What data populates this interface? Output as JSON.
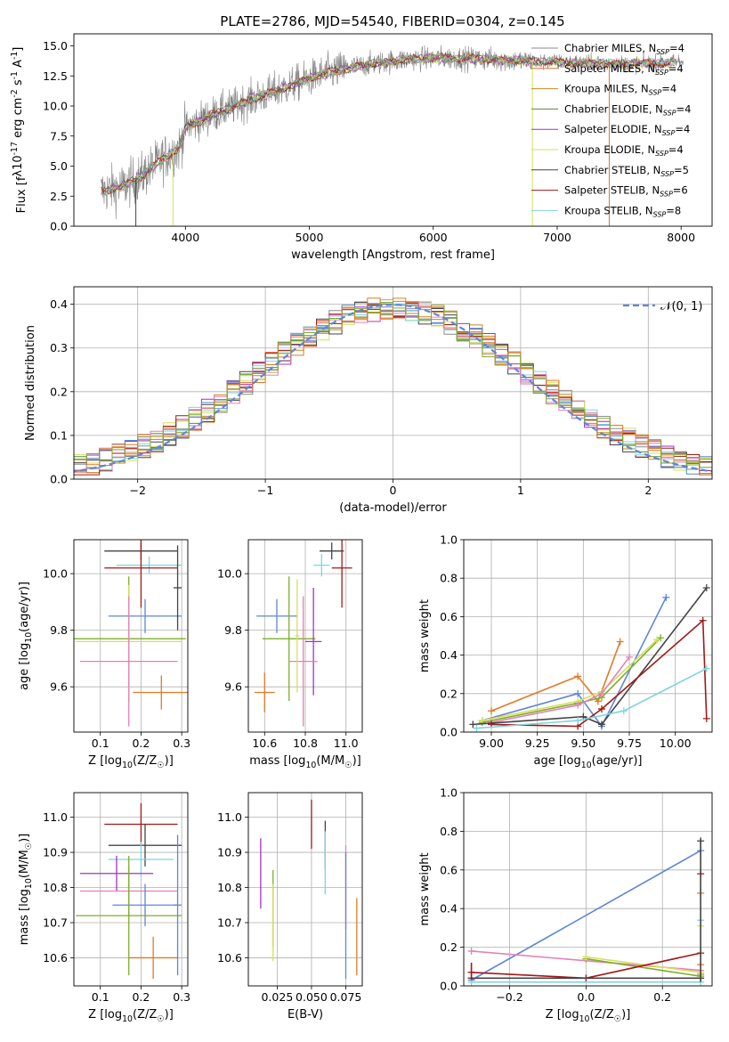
{
  "figure_title": "PLATE=2786, MJD=54540, FIBERID=0304, z=0.145",
  "models": [
    {
      "name": "Chabrier MILES",
      "nssp": "4",
      "color": "#8c8c8c"
    },
    {
      "name": "Salpeter MILES",
      "nssp": "4",
      "color": "#e36f3a"
    },
    {
      "name": "Kroupa MILES",
      "nssp": "4",
      "color": "#c88a1e"
    },
    {
      "name": "Chabrier ELODIE",
      "nssp": "4",
      "color": "#5a8a3c"
    },
    {
      "name": "Salpeter ELODIE",
      "nssp": "4",
      "color": "#a531c4"
    },
    {
      "name": "Kroupa ELODIE",
      "nssp": "4",
      "color": "#d4e05a"
    },
    {
      "name": "Chabrier STELIB",
      "nssp": "5",
      "color": "#444444"
    },
    {
      "name": "Salpeter STELIB",
      "nssp": "6",
      "color": "#a01818"
    },
    {
      "name": "Kroupa STELIB",
      "nssp": "8",
      "color": "#7fd4e0"
    }
  ],
  "extra_colors": {
    "blue": "#5f86d6",
    "pink": "#e57fb9",
    "orange": "#e07a26",
    "olive": "#7fae2a"
  },
  "chart_data": [
    {
      "id": "spectrum",
      "type": "line",
      "xlabel": "wavelength [Angstrom, rest frame]",
      "ylabel": "Flux [f_λ10^-17 erg cm^-2 s^-1 A^-1]",
      "xlim": [
        3100,
        8250
      ],
      "ylim": [
        0,
        16
      ],
      "xticks": [
        4000,
        5000,
        6000,
        7000,
        8000
      ],
      "yticks": [
        0.0,
        2.5,
        5.0,
        7.5,
        10.0,
        12.5,
        15.0
      ],
      "ytick_labels": [
        "0.0",
        "2.5",
        "5.0",
        "7.5",
        "10.0",
        "12.5",
        "15.0"
      ],
      "continuum": [
        [
          3320,
          2.9
        ],
        [
          3500,
          3.3
        ],
        [
          3650,
          4.2
        ],
        [
          3800,
          5.5
        ],
        [
          3950,
          6.5
        ],
        [
          4000,
          8.2
        ],
        [
          4200,
          9.2
        ],
        [
          4500,
          10.4
        ],
        [
          4800,
          11.5
        ],
        [
          5000,
          12.3
        ],
        [
          5200,
          12.9
        ],
        [
          5500,
          13.5
        ],
        [
          5800,
          13.9
        ],
        [
          6100,
          14.0
        ],
        [
          6400,
          13.9
        ],
        [
          6800,
          13.7
        ],
        [
          7200,
          13.6
        ],
        [
          7600,
          13.5
        ],
        [
          7900,
          13.6
        ],
        [
          8000,
          13.7
        ]
      ],
      "legend_location": "upper right",
      "grid": false
    },
    {
      "id": "residuals",
      "type": "histogram",
      "xlabel": "(data-model)/error",
      "ylabel": "Normed distribution",
      "xlim": [
        -2.5,
        2.5
      ],
      "ylim": [
        0,
        0.44
      ],
      "xticks": [
        -2,
        -1,
        0,
        1,
        2
      ],
      "xtick_labels": [
        "−2",
        "−1",
        "0",
        "1",
        "2"
      ],
      "yticks": [
        0.0,
        0.1,
        0.2,
        0.3,
        0.4
      ],
      "ytick_labels": [
        "0.0",
        "0.1",
        "0.2",
        "0.3",
        "0.4"
      ],
      "bin_width": 0.1,
      "reference_curve": {
        "label": "𝒩(0, 1)",
        "mean": 0,
        "sigma": 1,
        "color": "#5f86d6"
      },
      "legend_location": "upper right",
      "grid": true
    },
    {
      "id": "age-vs-Z",
      "type": "errorbar",
      "xlabel": "Z [log10(Z/Z☉)]",
      "ylabel": "age  [log10(age/yr)]",
      "xlim": [
        0.035,
        0.315
      ],
      "ylim": [
        9.44,
        10.12
      ],
      "xticks": [
        0.1,
        0.2,
        0.3
      ],
      "xtick_labels": [
        "0.1",
        "0.2",
        "0.3"
      ],
      "yticks": [
        9.6,
        9.8,
        10.0
      ],
      "ytick_labels": [
        "9.6",
        "9.8",
        "10.0"
      ],
      "points": [
        {
          "x": 0.2,
          "y": 10.08,
          "xerr": 0.09,
          "yerr": 0.03,
          "color": "#444444"
        },
        {
          "x": 0.22,
          "y": 10.03,
          "xerr": 0.08,
          "yerr": 0.03,
          "color": "#7fd4e0"
        },
        {
          "x": 0.2,
          "y": 10.02,
          "xerr": 0.09,
          "yerr": 0.14,
          "color": "#a01818"
        },
        {
          "x": 0.21,
          "y": 9.85,
          "xerr": 0.09,
          "yerr": 0.06,
          "color": "#5f86d6"
        },
        {
          "x": 0.17,
          "y": 9.77,
          "xerr": 0.14,
          "yerr": 0.22,
          "color": "#7fae2a"
        },
        {
          "x": 0.17,
          "y": 9.76,
          "xerr": 0.13,
          "yerr": 0.2,
          "color": "#d4e05a"
        },
        {
          "x": 0.17,
          "y": 9.69,
          "xerr": 0.12,
          "yerr": 0.23,
          "color": "#e57fb9"
        },
        {
          "x": 0.25,
          "y": 9.58,
          "xerr": 0.07,
          "yerr": 0.06,
          "color": "#e07a26"
        },
        {
          "x": 0.29,
          "y": 9.95,
          "xerr": 0.01,
          "yerr": 0.15,
          "color": "#444444"
        }
      ],
      "grid": true
    },
    {
      "id": "age-vs-mass",
      "type": "errorbar",
      "xlabel": "mass [log10(M/M☉)]",
      "ylabel": "",
      "xlim": [
        10.52,
        11.08
      ],
      "ylim": [
        9.44,
        10.12
      ],
      "xticks": [
        10.6,
        10.8,
        11.0
      ],
      "xtick_labels": [
        "10.6",
        "10.8",
        "11.0"
      ],
      "yticks": [
        9.6,
        9.8,
        10.0
      ],
      "ytick_labels": [
        "9.6",
        "9.8",
        "10.0"
      ],
      "points": [
        {
          "x": 10.93,
          "y": 10.08,
          "xerr": 0.06,
          "yerr": 0.03,
          "color": "#444444"
        },
        {
          "x": 10.88,
          "y": 10.03,
          "xerr": 0.04,
          "yerr": 0.04,
          "color": "#7fd4e0"
        },
        {
          "x": 10.98,
          "y": 10.02,
          "xerr": 0.05,
          "yerr": 0.14,
          "color": "#a01818"
        },
        {
          "x": 10.66,
          "y": 9.85,
          "xerr": 0.1,
          "yerr": 0.06,
          "color": "#5f86d6"
        },
        {
          "x": 10.72,
          "y": 9.77,
          "xerr": 0.13,
          "yerr": 0.22,
          "color": "#7fae2a"
        },
        {
          "x": 10.84,
          "y": 9.76,
          "xerr": 0.04,
          "yerr": 0.19,
          "color": "#a531c4"
        },
        {
          "x": 10.79,
          "y": 9.69,
          "xerr": 0.07,
          "yerr": 0.23,
          "color": "#e57fb9"
        },
        {
          "x": 10.6,
          "y": 9.58,
          "xerr": 0.05,
          "yerr": 0.07,
          "color": "#e07a26"
        },
        {
          "x": 10.76,
          "y": 9.78,
          "xerr": 0.01,
          "yerr": 0.2,
          "color": "#d4e05a"
        }
      ],
      "grid": true
    },
    {
      "id": "weight-vs-age",
      "type": "line",
      "xlabel": "age  [log10(age/yr)]",
      "ylabel": "mass weight",
      "xlim": [
        8.85,
        10.2
      ],
      "ylim": [
        0,
        1.0
      ],
      "xticks": [
        9.0,
        9.25,
        9.5,
        9.75,
        10.0
      ],
      "xtick_labels": [
        "9.00",
        "9.25",
        "9.50",
        "9.75",
        "10.00"
      ],
      "yticks": [
        0,
        0.2,
        0.4,
        0.6,
        0.8,
        1.0
      ],
      "ytick_labels": [
        "0.0",
        "0.2",
        "0.4",
        "0.6",
        "0.8",
        "1.0"
      ],
      "series": [
        {
          "color": "#5f86d6",
          "points": [
            [
              8.95,
              0.06
            ],
            [
              9.47,
              0.2
            ],
            [
              9.6,
              0.03
            ],
            [
              9.95,
              0.7
            ]
          ]
        },
        {
          "color": "#e07a26",
          "points": [
            [
              9.0,
              0.11
            ],
            [
              9.47,
              0.29
            ],
            [
              9.58,
              0.16
            ],
            [
              9.7,
              0.47
            ]
          ]
        },
        {
          "color": "#7fae2a",
          "points": [
            [
              8.95,
              0.05
            ],
            [
              9.47,
              0.15
            ],
            [
              9.6,
              0.18
            ],
            [
              9.92,
              0.49
            ]
          ]
        },
        {
          "color": "#d4e05a",
          "points": [
            [
              8.95,
              0.06
            ],
            [
              9.47,
              0.16
            ],
            [
              9.6,
              0.21
            ],
            [
              9.9,
              0.48
            ]
          ]
        },
        {
          "color": "#e57fb9",
          "points": [
            [
              9.0,
              0.05
            ],
            [
              9.47,
              0.14
            ],
            [
              9.6,
              0.2
            ],
            [
              9.75,
              0.39
            ]
          ]
        },
        {
          "color": "#444444",
          "points": [
            [
              8.9,
              0.04
            ],
            [
              9.5,
              0.08
            ],
            [
              9.6,
              0.04
            ],
            [
              10.17,
              0.75
            ]
          ]
        },
        {
          "color": "#a01818",
          "points": [
            [
              9.0,
              0.04
            ],
            [
              9.47,
              0.03
            ],
            [
              9.6,
              0.12
            ],
            [
              10.15,
              0.58
            ],
            [
              10.17,
              0.07
            ]
          ]
        },
        {
          "color": "#7fd4e0",
          "points": [
            [
              8.92,
              0.02
            ],
            [
              9.47,
              0.06
            ],
            [
              9.72,
              0.11
            ],
            [
              10.17,
              0.33
            ]
          ]
        }
      ],
      "grid": true
    },
    {
      "id": "mass-vs-Z",
      "type": "errorbar",
      "xlabel": "Z [log10(Z/Z☉)]",
      "ylabel": "mass [log10(M/M☉)]",
      "xlim": [
        0.035,
        0.315
      ],
      "ylim": [
        10.52,
        11.07
      ],
      "xticks": [
        0.1,
        0.2,
        0.3
      ],
      "xtick_labels": [
        "0.1",
        "0.2",
        "0.3"
      ],
      "yticks": [
        10.6,
        10.7,
        10.8,
        10.9,
        11.0
      ],
      "ytick_labels": [
        "10.6",
        "10.7",
        "10.8",
        "10.9",
        "11.0"
      ],
      "points": [
        {
          "x": 0.2,
          "y": 10.98,
          "xerr": 0.09,
          "yerr": 0.06,
          "color": "#a01818"
        },
        {
          "x": 0.21,
          "y": 10.92,
          "xerr": 0.09,
          "yerr": 0.06,
          "color": "#444444"
        },
        {
          "x": 0.2,
          "y": 10.88,
          "xerr": 0.08,
          "yerr": 0.05,
          "color": "#7fd4e0"
        },
        {
          "x": 0.14,
          "y": 10.84,
          "xerr": 0.09,
          "yerr": 0.05,
          "color": "#a531c4"
        },
        {
          "x": 0.17,
          "y": 10.79,
          "xerr": 0.12,
          "yerr": 0.07,
          "color": "#e57fb9"
        },
        {
          "x": 0.21,
          "y": 10.75,
          "xerr": 0.08,
          "yerr": 0.06,
          "color": "#5f86d6"
        },
        {
          "x": 0.17,
          "y": 10.72,
          "xerr": 0.13,
          "yerr": 0.17,
          "color": "#7fae2a"
        },
        {
          "x": 0.23,
          "y": 10.6,
          "xerr": 0.06,
          "yerr": 0.06,
          "color": "#e07a26"
        },
        {
          "x": 0.29,
          "y": 10.75,
          "xerr": 0.01,
          "yerr": 0.2,
          "color": "#5f86d6"
        }
      ],
      "grid": true
    },
    {
      "id": "mass-vs-EBV",
      "type": "errorbar",
      "xlabel": "E(B-V)",
      "ylabel": "",
      "xlim": [
        0.004,
        0.087
      ],
      "ylim": [
        10.52,
        11.07
      ],
      "xticks": [
        0.025,
        0.05,
        0.075
      ],
      "xtick_labels": [
        "0.025",
        "0.050",
        "0.075"
      ],
      "yticks": [
        10.6,
        10.7,
        10.8,
        10.9,
        11.0
      ],
      "ytick_labels": [
        "10.6",
        "10.7",
        "10.8",
        "10.9",
        "11.0"
      ],
      "points": [
        {
          "x": 0.05,
          "y": 10.98,
          "xerr": 0.0,
          "yerr": 0.07,
          "color": "#a01818"
        },
        {
          "x": 0.06,
          "y": 10.92,
          "xerr": 0.0,
          "yerr": 0.07,
          "color": "#444444"
        },
        {
          "x": 0.06,
          "y": 10.87,
          "xerr": 0.0,
          "yerr": 0.09,
          "color": "#7fd4e0"
        },
        {
          "x": 0.013,
          "y": 10.84,
          "xerr": 0.0,
          "yerr": 0.1,
          "color": "#a531c4"
        },
        {
          "x": 0.022,
          "y": 10.74,
          "xerr": 0.0,
          "yerr": 0.11,
          "color": "#7fae2a"
        },
        {
          "x": 0.022,
          "y": 10.7,
          "xerr": 0.0,
          "yerr": 0.11,
          "color": "#d4e05a"
        },
        {
          "x": 0.075,
          "y": 10.8,
          "xerr": 0.0,
          "yerr": 0.12,
          "color": "#e57fb9"
        },
        {
          "x": 0.075,
          "y": 10.72,
          "xerr": 0.0,
          "yerr": 0.18,
          "color": "#5f86d6"
        },
        {
          "x": 0.083,
          "y": 10.66,
          "xerr": 0.0,
          "yerr": 0.11,
          "color": "#e07a26"
        }
      ],
      "grid": true
    },
    {
      "id": "weight-vs-Z",
      "type": "line",
      "xlabel": "Z [log10(Z/Z☉)]",
      "ylabel": "mass weight",
      "xlim": [
        -0.32,
        0.33
      ],
      "ylim": [
        0,
        1.0
      ],
      "xticks": [
        -0.2,
        0.0,
        0.2
      ],
      "xtick_labels": [
        "−0.2",
        "0.0",
        "0.2"
      ],
      "yticks": [
        0,
        0.2,
        0.4,
        0.6,
        0.8,
        1.0
      ],
      "ytick_labels": [
        "0.0",
        "0.2",
        "0.4",
        "0.6",
        "0.8",
        "1.0"
      ],
      "series": [
        {
          "color": "#5f86d6",
          "points": [
            [
              -0.3,
              0.03
            ],
            [
              0.3,
              0.7
            ]
          ]
        },
        {
          "color": "#e57fb9",
          "points": [
            [
              -0.3,
              0.18
            ],
            [
              0.3,
              0.08
            ]
          ]
        },
        {
          "color": "#7fae2a",
          "points": [
            [
              0.0,
              0.14
            ],
            [
              0.3,
              0.05
            ]
          ]
        },
        {
          "color": "#d4e05a",
          "points": [
            [
              0.0,
              0.15
            ],
            [
              0.3,
              0.07
            ]
          ]
        },
        {
          "color": "#a01818",
          "points": [
            [
              -0.3,
              0.07
            ],
            [
              0.0,
              0.04
            ],
            [
              0.3,
              0.17
            ]
          ]
        },
        {
          "color": "#444444",
          "points": [
            [
              -0.3,
              0.04
            ],
            [
              0.3,
              0.04
            ]
          ]
        },
        {
          "color": "#7fd4e0",
          "points": [
            [
              -0.3,
              0.02
            ],
            [
              0.3,
              0.02
            ]
          ]
        }
      ],
      "markers_at_solar_plus": [
        0.75,
        0.58,
        0.48,
        0.34,
        0.31,
        0.11,
        0.06
      ],
      "grid": true
    }
  ]
}
